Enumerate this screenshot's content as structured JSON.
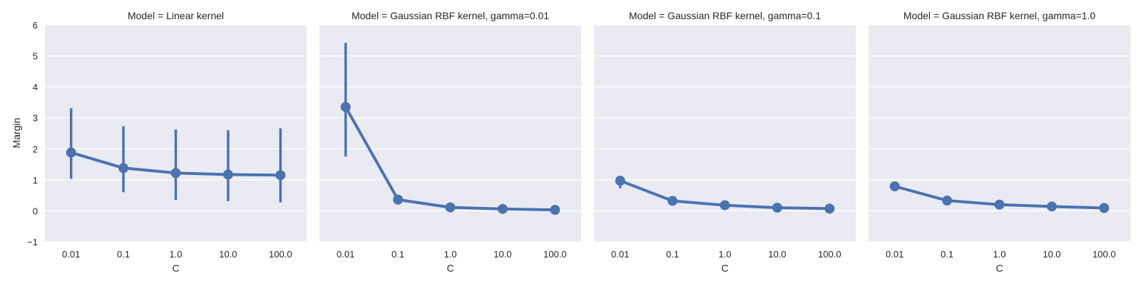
{
  "figure": {
    "ylabel": "Margin",
    "xlabel": "C"
  },
  "colors": {
    "series": "#4c72b0",
    "panel_bg": "#eaeaf2",
    "grid": "#ffffff",
    "text": "#262626"
  },
  "chart_data": [
    {
      "type": "line",
      "title": "Model = Linear kernel",
      "xlabel": "C",
      "ylabel": "Margin",
      "categories": [
        "0.01",
        "0.1",
        "1.0",
        "10.0",
        "100.0"
      ],
      "values": [
        1.88,
        1.38,
        1.22,
        1.17,
        1.15
      ],
      "error_low": [
        1.03,
        0.6,
        0.35,
        0.31,
        0.27
      ],
      "error_high": [
        3.31,
        2.73,
        2.62,
        2.6,
        2.66
      ],
      "ylim": [
        -1,
        6
      ],
      "yticks": [
        "−1",
        "0",
        "1",
        "2",
        "3",
        "4",
        "5",
        "6"
      ],
      "grid": true
    },
    {
      "type": "line",
      "title": "Model = Gaussian RBF kernel, gamma=0.01",
      "xlabel": "C",
      "categories": [
        "0.01",
        "0.1",
        "1.0",
        "10.0",
        "100.0"
      ],
      "values": [
        3.35,
        0.36,
        0.11,
        0.06,
        0.03
      ],
      "error_low": [
        1.75,
        0.3,
        0.09,
        0.05,
        0.02
      ],
      "error_high": [
        5.42,
        0.52,
        0.14,
        0.08,
        0.05
      ],
      "ylim": [
        -1,
        6
      ],
      "grid": true
    },
    {
      "type": "line",
      "title": "Model = Gaussian RBF kernel, gamma=0.1",
      "xlabel": "C",
      "categories": [
        "0.01",
        "0.1",
        "1.0",
        "10.0",
        "100.0"
      ],
      "values": [
        0.97,
        0.32,
        0.18,
        0.1,
        0.07
      ],
      "error_low": [
        0.73,
        0.28,
        0.15,
        0.08,
        0.05
      ],
      "error_high": [
        1.12,
        0.37,
        0.21,
        0.12,
        0.09
      ],
      "ylim": [
        -1,
        6
      ],
      "grid": true
    },
    {
      "type": "line",
      "title": "Model = Gaussian RBF kernel, gamma=1.0",
      "xlabel": "C",
      "categories": [
        "0.01",
        "0.1",
        "1.0",
        "10.0",
        "100.0"
      ],
      "values": [
        0.79,
        0.33,
        0.2,
        0.14,
        0.09
      ],
      "error_low": [
        0.66,
        0.29,
        0.17,
        0.12,
        0.07
      ],
      "error_high": [
        0.9,
        0.37,
        0.23,
        0.16,
        0.11
      ],
      "ylim": [
        -1,
        6
      ],
      "grid": true
    }
  ]
}
